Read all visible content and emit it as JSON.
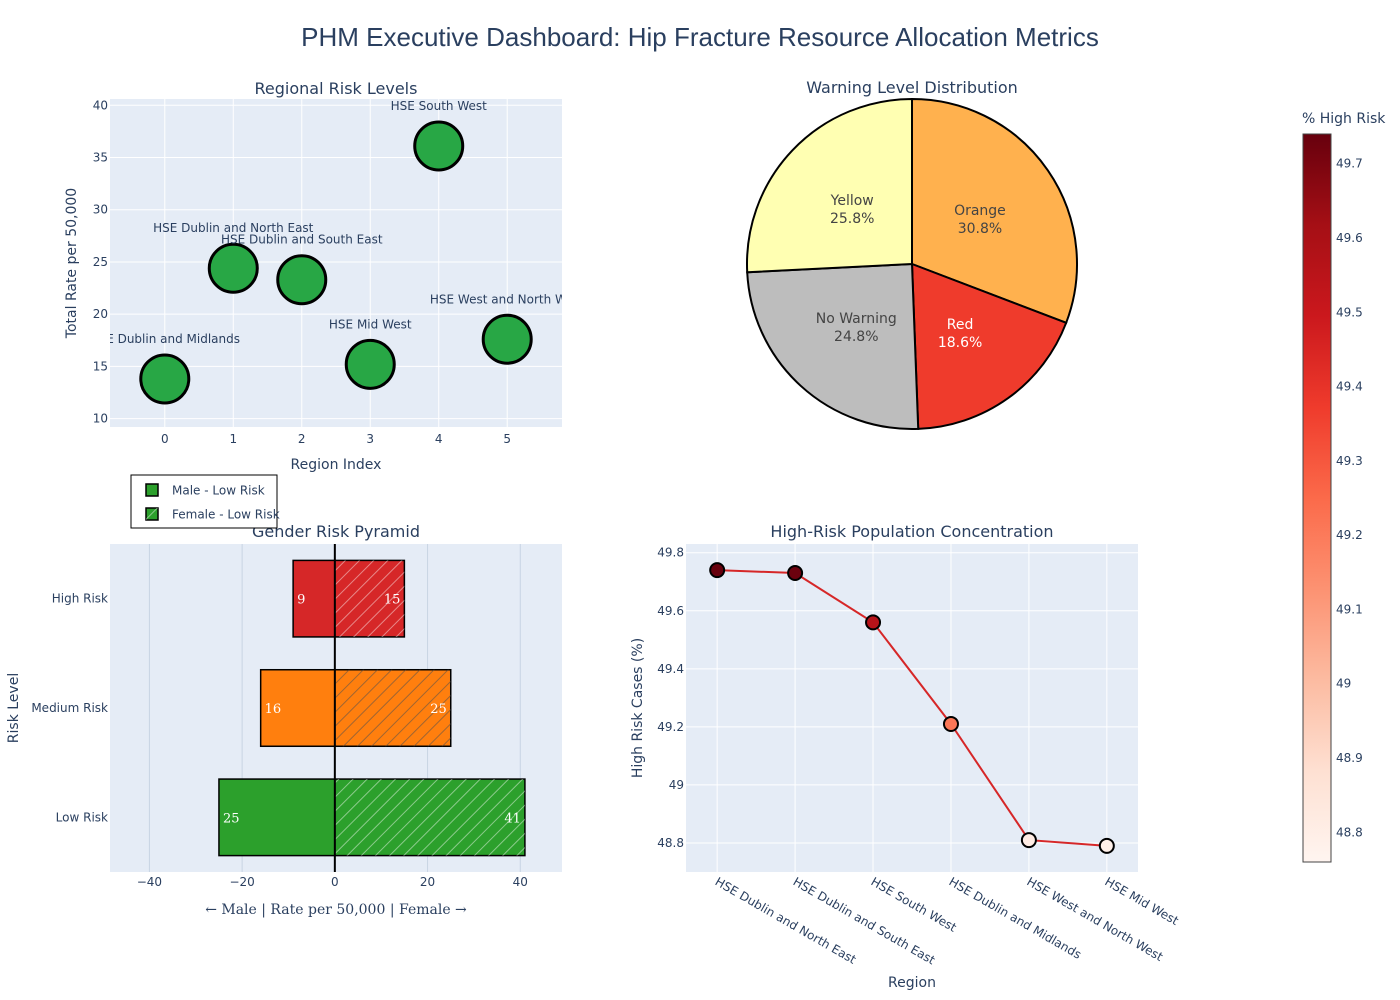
{
  "title": "PHM Executive Dashboard: Hip Fracture Resource Allocation Metrics",
  "chart_data": [
    {
      "type": "scatter",
      "title": "Regional Risk Levels",
      "xlabel": "Region Index",
      "ylabel": "Total Rate per 50,000",
      "xlim": [
        -0.8,
        5.8
      ],
      "ylim": [
        9.2,
        40.6
      ],
      "xticks": [
        0,
        1,
        2,
        3,
        4,
        5
      ],
      "yticks": [
        10,
        15,
        20,
        25,
        30,
        35,
        40
      ],
      "marker_color": "#28a745",
      "points": [
        {
          "x": 0,
          "y": 13.8,
          "label": "HSE Dublin and Midlands"
        },
        {
          "x": 1,
          "y": 24.4,
          "label": "HSE Dublin and North East"
        },
        {
          "x": 2,
          "y": 23.3,
          "label": "HSE Dublin and South East"
        },
        {
          "x": 3,
          "y": 15.2,
          "label": "HSE Mid West"
        },
        {
          "x": 4,
          "y": 36.1,
          "label": "HSE South West"
        },
        {
          "x": 5,
          "y": 17.6,
          "label": "HSE West and North West"
        }
      ]
    },
    {
      "type": "pie",
      "title": "Warning Level Distribution",
      "slices": [
        {
          "label": "Orange",
          "value": 30.8,
          "text": "30.8%",
          "color": "#ffb14e",
          "text_color": "#444444"
        },
        {
          "label": "Red",
          "value": 18.6,
          "text": "18.6%",
          "color": "#ef3b2c",
          "text_color": "#ffffff"
        },
        {
          "label": "No Warning",
          "value": 24.8,
          "text": "24.8%",
          "color": "#bdbdbd",
          "text_color": "#444444"
        },
        {
          "label": "Yellow",
          "value": 25.8,
          "text": "25.8%",
          "color": "#ffffb2",
          "text_color": "#444444"
        }
      ]
    },
    {
      "type": "bar",
      "title": "Gender Risk Pyramid",
      "xlabel": "← Male | Rate per 50,000 | Female →",
      "ylabel": "Risk Level",
      "xlim": [
        -48.5,
        49
      ],
      "xticks": [
        -40,
        -20,
        0,
        20,
        40
      ],
      "xtick_labels": [
        "−40",
        "−20",
        "0",
        "20",
        "40"
      ],
      "categories": [
        "Low Risk",
        "Medium Risk",
        "High Risk"
      ],
      "series": [
        {
          "name": "Male",
          "values": [
            -25,
            -16,
            -9
          ]
        },
        {
          "name": "Female",
          "values": [
            41,
            25,
            15
          ]
        }
      ],
      "colors": [
        "#2ca02c",
        "#ff7f0e",
        "#d62728"
      ],
      "legend": {
        "placement": "top-left",
        "entries": [
          "Male - Low Risk",
          "Female - Low Risk"
        ]
      }
    },
    {
      "type": "line",
      "title": "High-Risk Population Concentration",
      "xlabel": "Region",
      "ylabel": "High Risk Cases (%)",
      "ylim": [
        48.7,
        49.83
      ],
      "yticks": [
        48.8,
        49,
        49.2,
        49.4,
        49.6,
        49.8
      ],
      "ytick_labels": [
        "48.8",
        "49",
        "49.2",
        "49.4",
        "49.6",
        "49.8"
      ],
      "line_color": "#d62728",
      "categories": [
        "HSE Dublin and North East",
        "HSE Dublin and South East",
        "HSE South West",
        "HSE Dublin and Midlands",
        "HSE West and North West",
        "HSE Mid West"
      ],
      "values": [
        49.74,
        49.73,
        49.56,
        49.21,
        48.81,
        48.79
      ],
      "colorscale": "Reds"
    }
  ],
  "colorbar": {
    "title": "% High Risk",
    "min": 48.76,
    "max": 49.74,
    "ticks": [
      48.8,
      48.9,
      49,
      49.1,
      49.2,
      49.3,
      49.4,
      49.5,
      49.6,
      49.7
    ],
    "tick_labels": [
      "48.8",
      "48.9",
      "49",
      "49.1",
      "49.2",
      "49.3",
      "49.4",
      "49.5",
      "49.6",
      "49.7"
    ]
  }
}
